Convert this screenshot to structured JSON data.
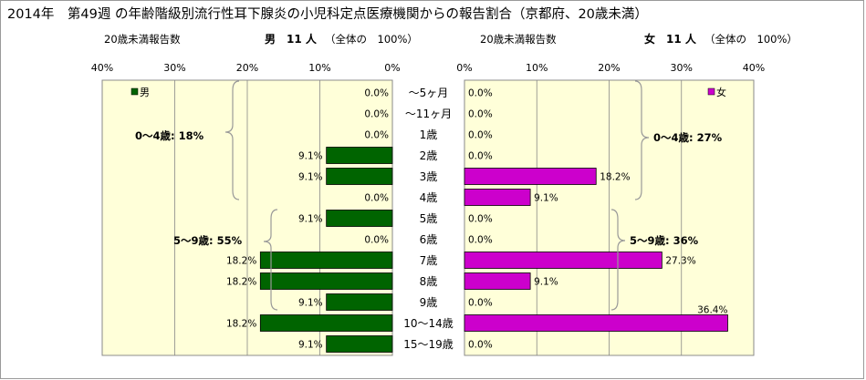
{
  "title": "2014年　第49週 の年齢階級別流行性耳下腺炎の小児科定点医療機関からの報告割合（京都府、20歳未満）",
  "left_header": {
    "reports_label": "20歳未満報告数",
    "sex": "男",
    "count": "11 人",
    "total_note": "（全体の　100%）"
  },
  "right_header": {
    "reports_label": "20歳未満報告数",
    "sex": "女",
    "count": "11 人",
    "total_note": "（全体の　100%）"
  },
  "colors": {
    "male_bar": "#006400",
    "female_bar": "#cc00cc",
    "plot_background": "#ffffd9"
  },
  "chart_data": {
    "type": "bar",
    "orientation": "horizontal",
    "layout": "population-pyramid",
    "categories": [
      "～5ヶ月",
      "～11ヶ月",
      "1歳",
      "2歳",
      "3歳",
      "4歳",
      "5歳",
      "6歳",
      "7歳",
      "8歳",
      "9歳",
      "10～14歳",
      "15～19歳"
    ],
    "series": [
      {
        "name": "男",
        "side": "left",
        "values": [
          0.0,
          0.0,
          0.0,
          9.1,
          9.1,
          0.0,
          9.1,
          0.0,
          18.2,
          18.2,
          9.1,
          18.2,
          9.1
        ],
        "labels": [
          "0.0%",
          "0.0%",
          "0.0%",
          "9.1%",
          "9.1%",
          "0.0%",
          "9.1%",
          "0.0%",
          "18.2%",
          "18.2%",
          "9.1%",
          "18.2%",
          "9.1%"
        ]
      },
      {
        "name": "女",
        "side": "right",
        "values": [
          0.0,
          0.0,
          0.0,
          0.0,
          18.2,
          9.1,
          0.0,
          0.0,
          27.3,
          9.1,
          0.0,
          36.4,
          0.0
        ],
        "labels": [
          "0.0%",
          "0.0%",
          "0.0%",
          "0.0%",
          "18.2%",
          "9.1%",
          "0.0%",
          "0.0%",
          "27.3%",
          "9.1%",
          "0.0%",
          "36.4%",
          "0.0%"
        ]
      }
    ],
    "xlim": [
      0,
      40
    ],
    "left_ticks": [
      "40%",
      "30%",
      "20%",
      "10%",
      "0%"
    ],
    "right_ticks": [
      "0%",
      "10%",
      "20%",
      "30%",
      "40%"
    ],
    "grid": "vertical",
    "legend": "top-left (男), top-right (女)",
    "annotations": {
      "male_group_0_4": "0～4歳: 18%",
      "male_group_5_9": "5～9歳: 55%",
      "female_group_0_4": "0～4歳: 27%",
      "female_group_5_9": "5～9歳: 36%"
    }
  }
}
